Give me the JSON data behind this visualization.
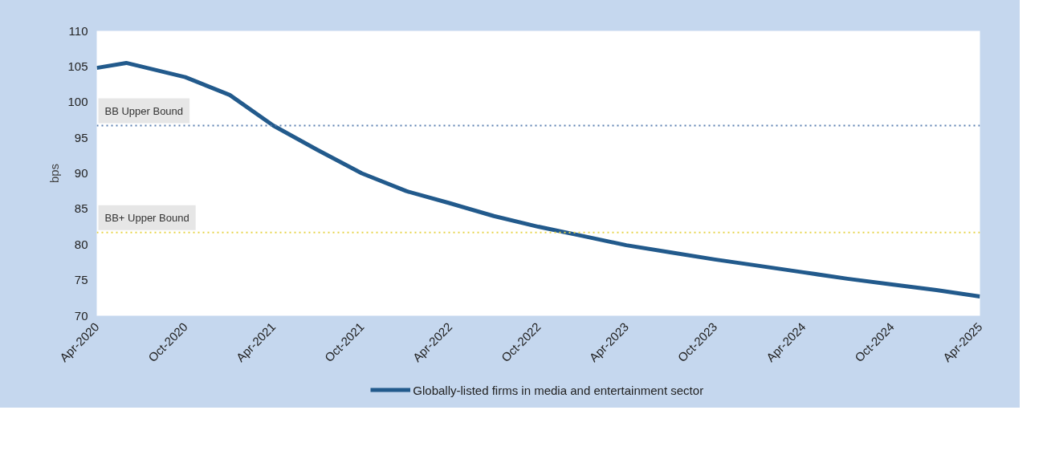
{
  "chart_data": {
    "type": "line",
    "ylabel": "bps",
    "x": [
      "2020-04",
      "2020-06",
      "2020-10",
      "2021-01",
      "2021-04",
      "2021-07",
      "2021-10",
      "2022-01",
      "2022-04",
      "2022-07",
      "2022-10",
      "2023-01",
      "2023-04",
      "2023-07",
      "2023-10",
      "2024-01",
      "2024-04",
      "2024-07",
      "2024-10",
      "2025-01",
      "2025-04"
    ],
    "series": [
      {
        "name": "Globally-listed firms in media and entertainment sector",
        "color": "#225a8c",
        "values": [
          104.8,
          105.5,
          103.5,
          101,
          96.7,
          93.3,
          90,
          87.5,
          85.8,
          84,
          82.5,
          81.2,
          79.9,
          78.9,
          77.9,
          77,
          76.1,
          75.2,
          74.4,
          73.6,
          72.7
        ]
      }
    ],
    "xlim": [
      "2020-04",
      "2025-04"
    ],
    "xticks": [
      {
        "value": "2020-04",
        "label": "Apr-2020"
      },
      {
        "value": "2020-10",
        "label": "Oct-2020"
      },
      {
        "value": "2021-04",
        "label": "Apr-2021"
      },
      {
        "value": "2021-10",
        "label": "Oct-2021"
      },
      {
        "value": "2022-04",
        "label": "Apr-2022"
      },
      {
        "value": "2022-10",
        "label": "Oct-2022"
      },
      {
        "value": "2023-04",
        "label": "Apr-2023"
      },
      {
        "value": "2023-10",
        "label": "Oct-2023"
      },
      {
        "value": "2024-04",
        "label": "Apr-2024"
      },
      {
        "value": "2024-10",
        "label": "Oct-2024"
      },
      {
        "value": "2025-04",
        "label": "Apr-2025"
      }
    ],
    "ylim": [
      70,
      110
    ],
    "yticks": [
      70,
      75,
      80,
      85,
      90,
      95,
      100,
      105,
      110
    ],
    "ref_lines": [
      {
        "axis": "y",
        "value": 96.7,
        "label": "BB Upper Bound",
        "color": "#5a7fb0",
        "line_style": "dotted"
      },
      {
        "axis": "y",
        "value": 81.7,
        "label": "BB+ Upper Bound",
        "color": "#e6d44a",
        "line_style": "dotted"
      }
    ],
    "grid": false,
    "legend": "bottom",
    "marker": "none",
    "line_style": "solid"
  }
}
